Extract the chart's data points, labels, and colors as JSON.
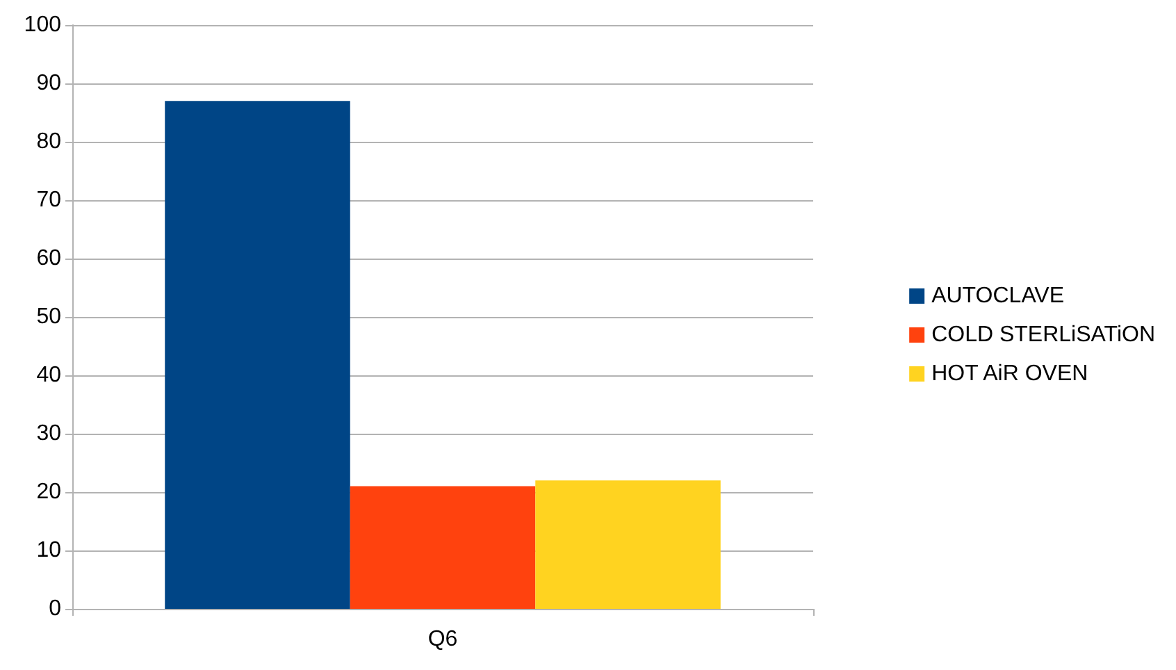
{
  "chart_data": {
    "type": "bar",
    "categories": [
      "Q6"
    ],
    "series": [
      {
        "name": "AUTOCLAVE",
        "color": "#004586",
        "values": [
          87
        ]
      },
      {
        "name": "COLD STERLiSATiON",
        "color": "#ff420e",
        "values": [
          21
        ]
      },
      {
        "name": "HOT AiR OVEN",
        "color": "#ffd320",
        "values": [
          22
        ]
      }
    ],
    "ylim": [
      0,
      100
    ],
    "yticks": [
      0,
      10,
      20,
      30,
      40,
      50,
      60,
      70,
      80,
      90,
      100
    ],
    "grid": "y",
    "legend": "right"
  }
}
